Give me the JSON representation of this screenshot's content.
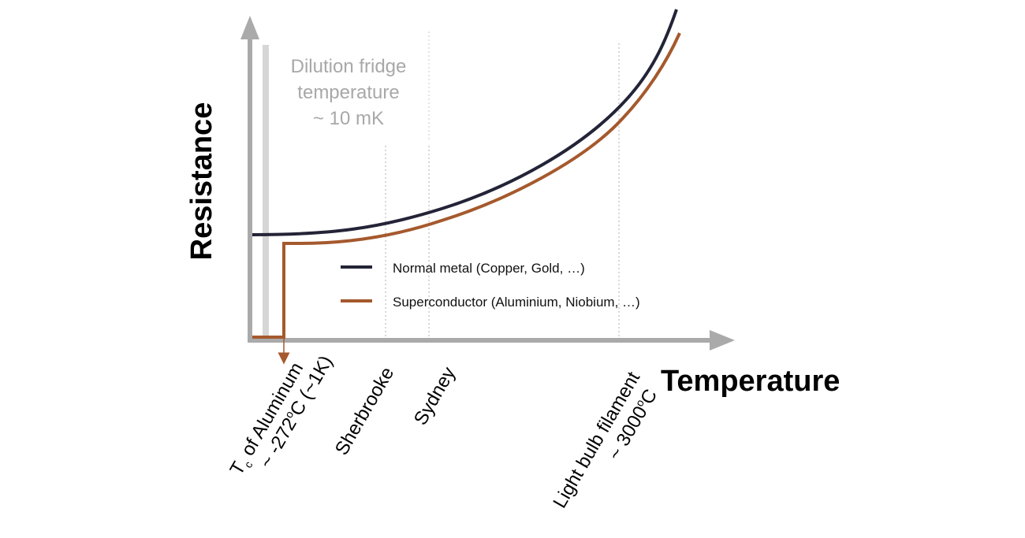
{
  "axes": {
    "y_label": "Resistance",
    "x_label": "Temperature"
  },
  "dilution_note": {
    "line1": "Dilution fridge",
    "line2": "temperature",
    "line3": "~ 10 mK"
  },
  "legend": {
    "normal": "Normal metal (Copper, Gold, …)",
    "super": "Superconductor (Aluminium, Niobium, …)"
  },
  "markers": {
    "tc_line1_prefix": "T",
    "tc_line1_sub": "c",
    "tc_line1_rest": " of Aluminum",
    "tc_line2_a": "~ -272",
    "tc_line2_sup": "o",
    "tc_line2_b": "C (~1K)",
    "sherbrooke": "Sherbrooke",
    "sydney": "Sydney",
    "bulb_line1": "Light bulb filament",
    "bulb_line2_a": "~ 3000",
    "bulb_line2_sup": "o",
    "bulb_line2_b": "C"
  },
  "colors": {
    "axis": "#aaaaaa",
    "normal_metal": "#242438",
    "superconductor": "#a5592d",
    "dilution_band": "#d6d6d6",
    "dilution_text": "#a8a8a8",
    "guide_lines": "#b0b0b0"
  }
}
